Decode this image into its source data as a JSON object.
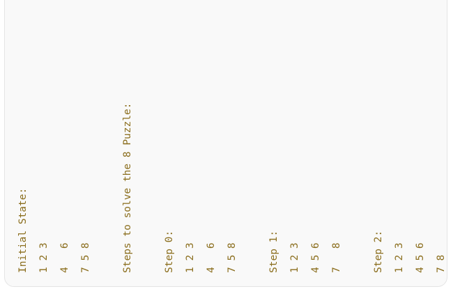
{
  "output": {
    "initial_header": "Initial State:",
    "initial_rows": [
      "1 2 3",
      "4   6",
      "7 5 8"
    ],
    "steps_header": "Steps to solve the 8 Puzzle:",
    "steps": [
      {
        "label": "Step 0:",
        "rows": [
          "1 2 3",
          "4   6",
          "7 5 8"
        ]
      },
      {
        "label": "Step 1:",
        "rows": [
          "1 2 3",
          "4 5 6",
          "7   8"
        ]
      },
      {
        "label": "Step 2:",
        "rows": [
          "1 2 3",
          "4 5 6",
          "7 8"
        ]
      }
    ]
  },
  "colors": {
    "text": "#8a6d1c",
    "panel_bg": "#f9f9f9"
  }
}
